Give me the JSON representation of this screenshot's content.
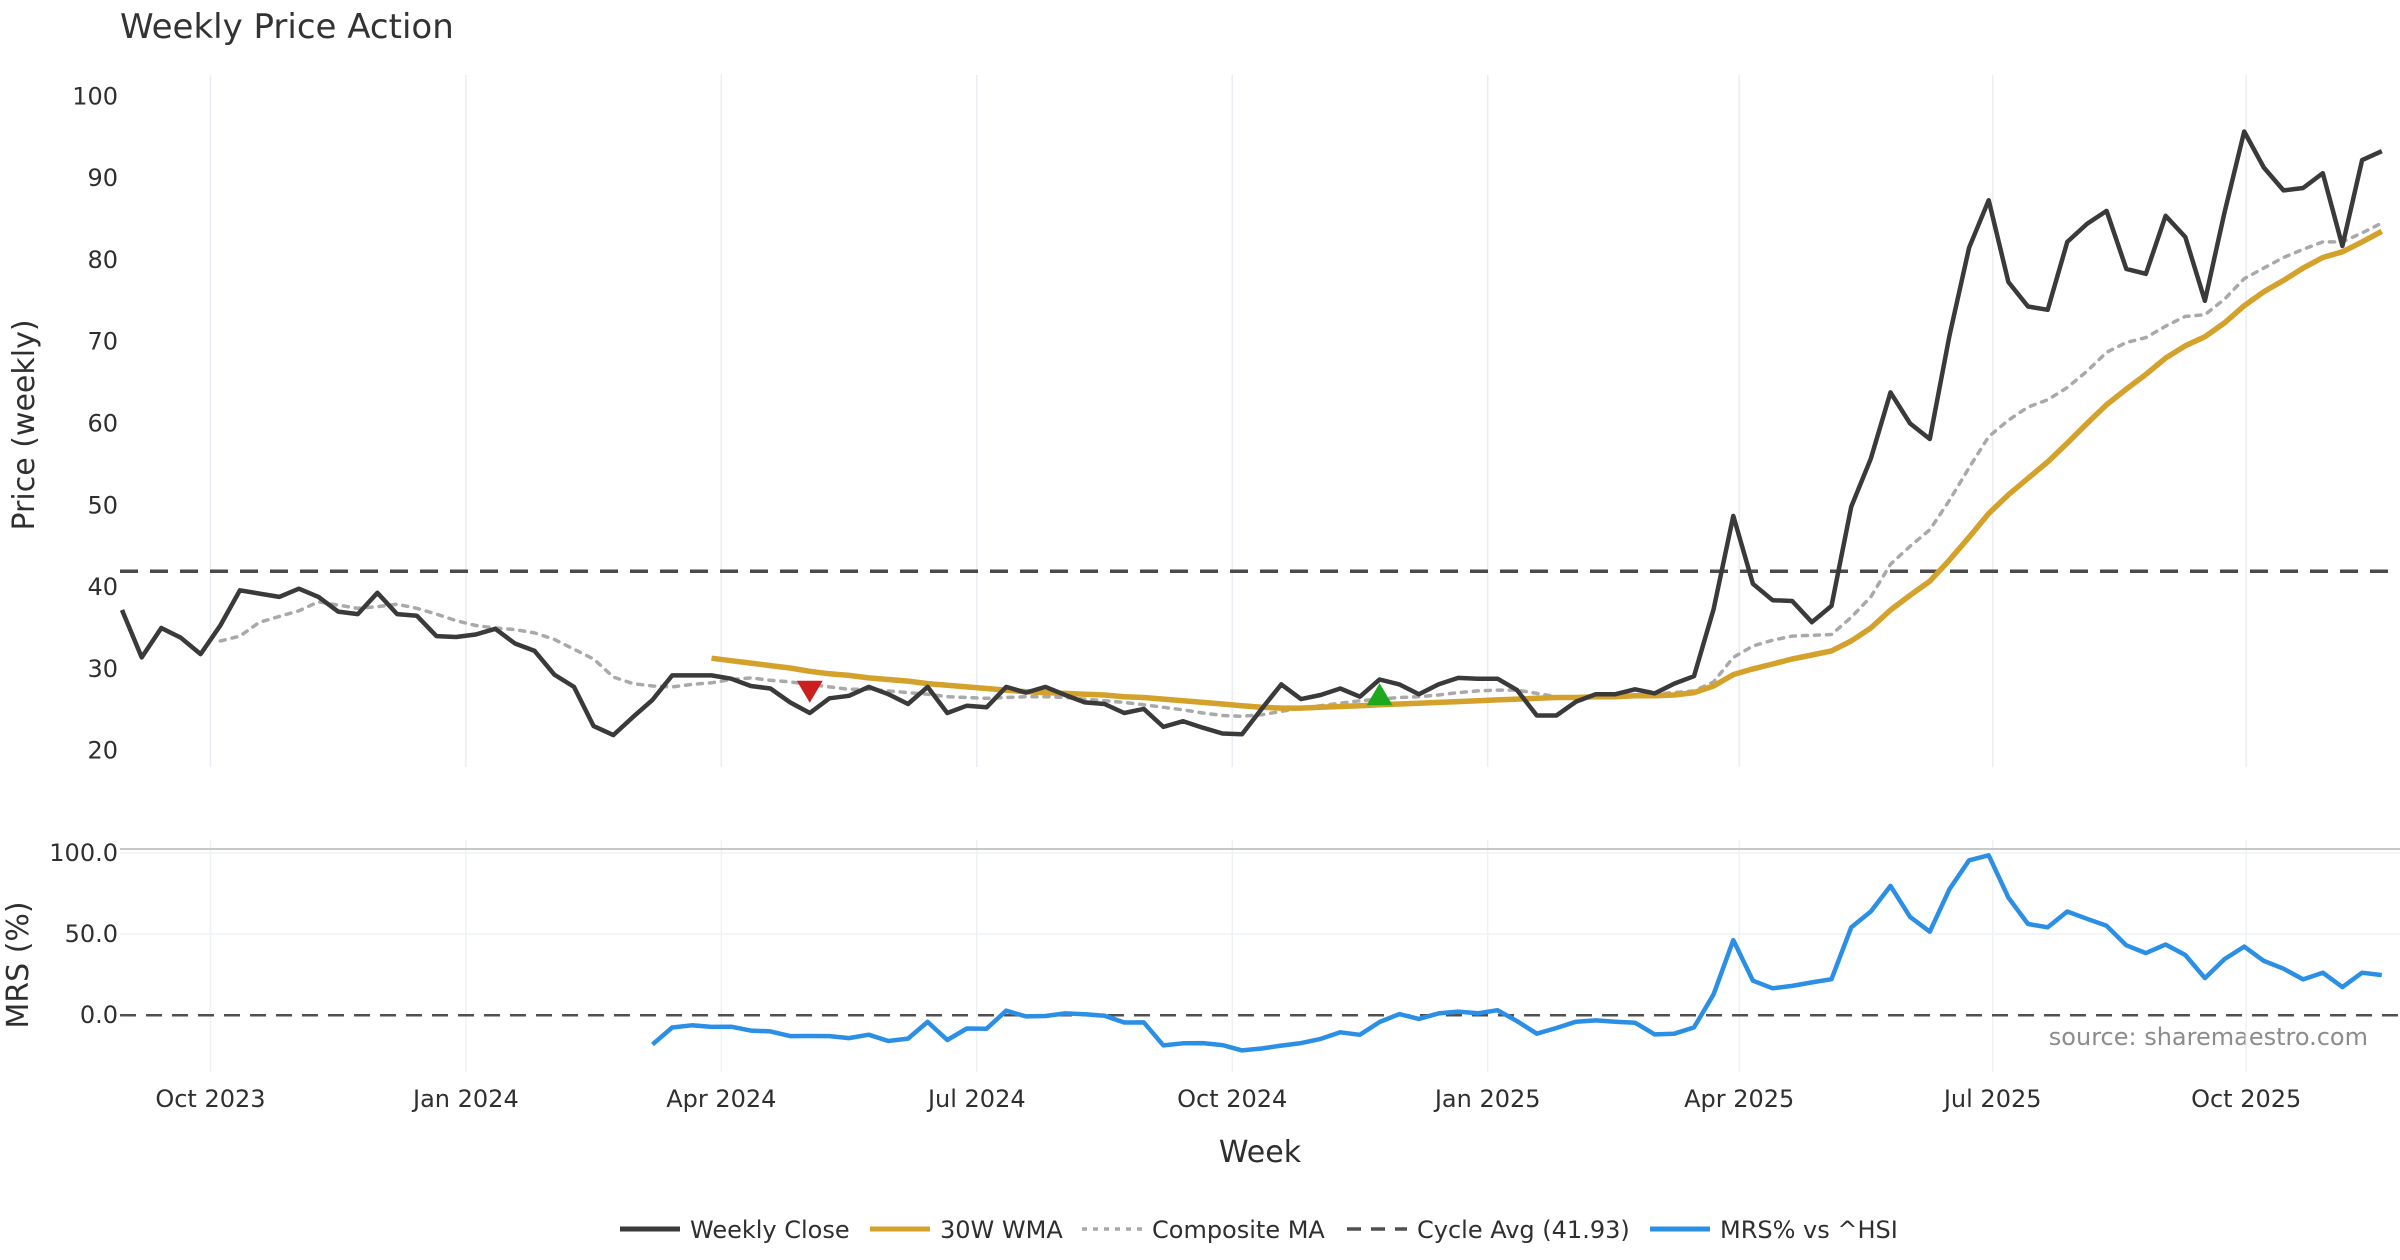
{
  "chart_data": {
    "type": "line",
    "title": "Weekly Price Action",
    "xlabel": "Week",
    "month_ticks": [
      "Oct 2023",
      "Jan 2024",
      "Apr 2024",
      "Jul 2024",
      "Oct 2024",
      "Jan 2025",
      "Apr 2025",
      "Jul 2025",
      "Oct 2025"
    ],
    "source_note": "source: sharemaestro.com",
    "price_panel": {
      "ylabel": "Price (weekly)",
      "ylim": [
        18,
        102
      ],
      "yticks": [
        20,
        30,
        40,
        50,
        60,
        70,
        80,
        90,
        100
      ],
      "cycle_avg": 41.93,
      "weekly_close": [
        37.2,
        31.4,
        35,
        33.8,
        31.8,
        35.3,
        39.6,
        39.2,
        38.8,
        39.8,
        38.8,
        37,
        36.7,
        39.3,
        36.7,
        36.5,
        34,
        33.9,
        34.2,
        34.9,
        33.1,
        32.2,
        29.3,
        27.8,
        23,
        21.9,
        24.1,
        26.2,
        29.2,
        29.2,
        29.2,
        28.8,
        27.9,
        27.6,
        25.9,
        24.6,
        26.4,
        26.7,
        27.8,
        26.9,
        25.7,
        27.8,
        24.6,
        25.5,
        25.3,
        27.8,
        27.1,
        27.8,
        26.8,
        25.9,
        25.7,
        24.6,
        25.1,
        22.9,
        23.6,
        22.8,
        22.1,
        22,
        25.1,
        28.1,
        26.3,
        26.8,
        27.6,
        26.6,
        28.7,
        28.1,
        26.9,
        28.1,
        28.9,
        28.8,
        28.8,
        27.4,
        24.3,
        24.3,
        26,
        26.9,
        26.9,
        27.5,
        27,
        28.2,
        29.1,
        37.3,
        48.7,
        40.4,
        38.4,
        38.3,
        35.7,
        37.7,
        49.8,
        55.7,
        63.8,
        60,
        58.1,
        70.7,
        81.5,
        87.3,
        77.3,
        74.3,
        73.9,
        82.2,
        84.4,
        86,
        78.9,
        78.3,
        85.4,
        82.8,
        75,
        85.8,
        95.7,
        91.3,
        88.5,
        88.8,
        90.6,
        81.7,
        92.2,
        93.3
      ],
      "wma_30": [
        null,
        null,
        null,
        null,
        null,
        null,
        null,
        null,
        null,
        null,
        null,
        null,
        null,
        null,
        null,
        null,
        null,
        null,
        null,
        null,
        null,
        null,
        null,
        null,
        null,
        null,
        null,
        null,
        null,
        null,
        31.3,
        31,
        30.7,
        30.4,
        30.1,
        29.7,
        29.4,
        29.2,
        28.9,
        28.7,
        28.5,
        28.2,
        28,
        27.8,
        27.6,
        27.4,
        27.2,
        27.1,
        27,
        26.9,
        26.8,
        26.6,
        26.5,
        26.3,
        26.1,
        25.9,
        25.7,
        25.5,
        25.3,
        25.2,
        25.2,
        25.3,
        25.4,
        25.5,
        25.6,
        25.7,
        25.8,
        25.9,
        26,
        26.1,
        26.2,
        26.3,
        26.4,
        26.5,
        26.5,
        26.6,
        26.6,
        26.7,
        26.7,
        26.8,
        27.1,
        27.9,
        29.3,
        30,
        30.6,
        31.2,
        31.7,
        32.2,
        33.4,
        35,
        37.2,
        39,
        40.7,
        43.3,
        46.1,
        49,
        51.3,
        53.3,
        55.3,
        57.6,
        60,
        62.3,
        64.2,
        66,
        68,
        69.5,
        70.6,
        72.3,
        74.4,
        76.1,
        77.5,
        79,
        80.3,
        81,
        82.2,
        83.5
      ],
      "composite_ma": [
        null,
        null,
        null,
        null,
        null,
        33.4,
        34,
        35.7,
        36.4,
        37.1,
        38.2,
        37.8,
        37.4,
        37.6,
        37.9,
        37.4,
        36.7,
        35.9,
        35.3,
        35,
        34.8,
        34.4,
        33.6,
        32.4,
        31.2,
        29,
        28.2,
        27.9,
        27.8,
        28.1,
        28.3,
        28.7,
        28.9,
        28.6,
        28.4,
        28.1,
        27.8,
        27.5,
        27.5,
        27.3,
        27.1,
        26.9,
        26.6,
        26.5,
        26.4,
        26.5,
        26.6,
        26.6,
        26.5,
        26.3,
        26.1,
        25.9,
        25.6,
        25.3,
        25,
        24.6,
        24.3,
        24.2,
        24.4,
        24.8,
        25.2,
        25.5,
        25.8,
        26.1,
        26.3,
        26.5,
        26.6,
        26.8,
        27.1,
        27.3,
        27.4,
        27.4,
        27,
        26.6,
        26.5,
        26.5,
        26.6,
        26.8,
        26.9,
        27.1,
        27.3,
        28.4,
        31.4,
        32.8,
        33.5,
        34,
        34.1,
        34.2,
        36.3,
        38.8,
        42.8,
        45,
        47,
        50.6,
        54.6,
        58.4,
        60.4,
        62,
        62.9,
        64.4,
        66.4,
        68.7,
        69.9,
        70.5,
        71.9,
        73.1,
        73.3,
        75.2,
        77.7,
        79,
        80.3,
        81.3,
        82.2,
        82.2,
        83.3,
        84.5
      ],
      "sell_marker": {
        "week": 35,
        "value": 27.2
      },
      "buy_marker": {
        "week": 64,
        "value": 26.9
      }
    },
    "mrs_panel": {
      "ylabel": "MRS (%)",
      "ylim": [
        -35,
        108
      ],
      "yticks": [
        "100.0",
        "50.0",
        "0.0"
      ],
      "ytick_values": [
        100,
        50,
        0
      ],
      "values": [
        null,
        null,
        null,
        null,
        null,
        null,
        null,
        null,
        null,
        null,
        null,
        null,
        null,
        null,
        null,
        null,
        null,
        null,
        null,
        null,
        null,
        null,
        null,
        null,
        null,
        null,
        null,
        -18,
        -7.6,
        -6.2,
        -7.2,
        -7.1,
        -9.5,
        -10,
        -12.9,
        -12.8,
        -12.9,
        -14.1,
        -12,
        -15.9,
        -14.4,
        -4.1,
        -15.3,
        -8.2,
        -8.3,
        2.8,
        -0.7,
        -0.5,
        1.1,
        0.6,
        -0.3,
        -4.5,
        -4.4,
        -18.6,
        -17.3,
        -17.2,
        -18.4,
        -21.7,
        -20.5,
        -18.7,
        -17.2,
        -14.6,
        -10.5,
        -12.1,
        -4.2,
        0.7,
        -2.3,
        1.1,
        2.2,
        1.2,
        3.1,
        -3.7,
        -11.4,
        -7.9,
        -4,
        -3.2,
        -4,
        -4.6,
        -11.8,
        -11.4,
        -7.5,
        12.9,
        46.3,
        21.3,
        16.6,
        18.1,
        20.2,
        22.2,
        54.1,
        63.9,
        79.7,
        60.6,
        51.5,
        77.6,
        95.5,
        98.6,
        72.5,
        56.2,
        54.2,
        63.9,
        59.4,
        55.1,
        43.1,
        38.3,
        43.6,
        37.1,
        22.9,
        34.6,
        42.3,
        33.5,
        28.7,
        22.1,
        26.2,
        17.3,
        26.2,
        24.7
      ]
    },
    "legend": [
      {
        "label": "Weekly Close",
        "color": "#3a3a3a",
        "style": "solid"
      },
      {
        "label": "30W WMA",
        "color": "#d4a22b",
        "style": "solid"
      },
      {
        "label": "Composite MA",
        "color": "#a9a9a9",
        "style": "dotted"
      },
      {
        "label": "Cycle Avg (41.93)",
        "color": "#505050",
        "style": "dashed"
      },
      {
        "label": "MRS% vs ^HSI",
        "color": "#2b8fe6",
        "style": "solid"
      }
    ],
    "colors": {
      "close": "#3a3a3a",
      "wma": "#d4a22b",
      "composite": "#a9a9a9",
      "cycle": "#4a4a4a",
      "mrs": "#2b8fe6",
      "sell": "#cc1f1f",
      "buy": "#1ea81e"
    }
  }
}
